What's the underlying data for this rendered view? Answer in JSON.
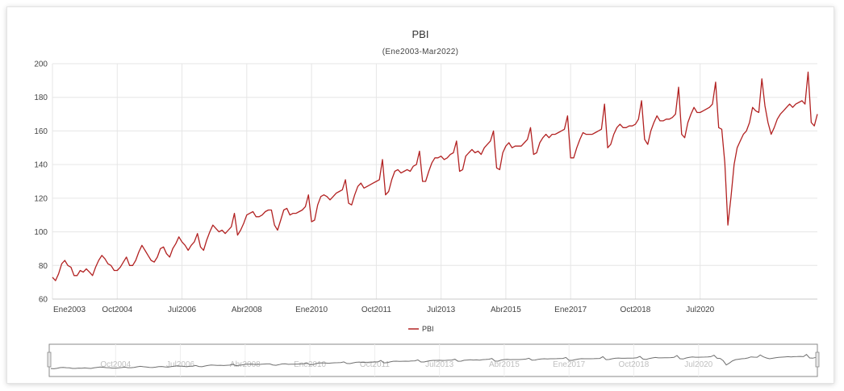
{
  "chart_data": {
    "type": "line",
    "title": "PBI",
    "subtitle": "(Ene2003-Mar2022)",
    "xlabel": "",
    "ylabel": "",
    "ylim": [
      60,
      200
    ],
    "yticks": [
      60,
      80,
      100,
      120,
      140,
      160,
      180,
      200
    ],
    "x_tick_labels": [
      "Ene2003",
      "Oct2004",
      "Jul2006",
      "Abr2008",
      "Ene2010",
      "Oct2011",
      "Jul2013",
      "Abr2015",
      "Ene2017",
      "Oct2018",
      "Jul2020"
    ],
    "navigator_labels": [
      "Oct2004",
      "Jul2006",
      "Abr2008",
      "Ene2010",
      "Oct2011",
      "Jul2013",
      "Abr2015",
      "Ene2017",
      "Oct2018",
      "Jul2020"
    ],
    "x_start": "2003-01",
    "x_end": "2022-03",
    "grid": true,
    "legend": "bottom-center",
    "series": [
      {
        "name": "PBI",
        "color": "#b22222",
        "values": [
          [
            73,
            71,
            75,
            81,
            83,
            80,
            79,
            74,
            74,
            77,
            76,
            78,
            76,
            74,
            79,
            83,
            86,
            84,
            81,
            80,
            77,
            77,
            79,
            82
          ],
          [
            85,
            80,
            80,
            83,
            88,
            92,
            89,
            86,
            83,
            82,
            85,
            90,
            91,
            87,
            85,
            90,
            93,
            97,
            94,
            92,
            89,
            92,
            94,
            99
          ],
          [
            91,
            89,
            95,
            100,
            104,
            102,
            100,
            101,
            99,
            101,
            103,
            111,
            98,
            101,
            105,
            110,
            111,
            112,
            109,
            109,
            110,
            112,
            113,
            113
          ],
          [
            104,
            101,
            107,
            113,
            114,
            110,
            111,
            111,
            112,
            113,
            115,
            122,
            106,
            107,
            116,
            121,
            122,
            121,
            119,
            121,
            123,
            124,
            125,
            131
          ],
          [
            117,
            116,
            122,
            127,
            129,
            126,
            127,
            128,
            129,
            130,
            131,
            143,
            122,
            124,
            131,
            136,
            137,
            135,
            136,
            137,
            136,
            139,
            140,
            148
          ],
          [
            130,
            130,
            136,
            141,
            144,
            144,
            145,
            143,
            144,
            146,
            147,
            154,
            136,
            137,
            145,
            147,
            149,
            147,
            148,
            146,
            150,
            152,
            154,
            160
          ],
          [
            138,
            137,
            147,
            151,
            153,
            150,
            151,
            151,
            151,
            153,
            155,
            162,
            146,
            147,
            153,
            156,
            158,
            156,
            158,
            158,
            159,
            160,
            161,
            169
          ],
          [
            144,
            144,
            150,
            155,
            159,
            158,
            158,
            158,
            159,
            160,
            161,
            176,
            150,
            152,
            158,
            162,
            164,
            162,
            162,
            163,
            163,
            164,
            167,
            178
          ],
          [
            155,
            152,
            160,
            165,
            169,
            166,
            166,
            167,
            167,
            168,
            170,
            186,
            158,
            156,
            165,
            170,
            174,
            171,
            171,
            172,
            173,
            174,
            176,
            189
          ],
          [
            162,
            161,
            141,
            104,
            121,
            140,
            150,
            154,
            158,
            160,
            165,
            174,
            172,
            171,
            191,
            175,
            165,
            158,
            162,
            167,
            170,
            172,
            174,
            176
          ],
          [
            174,
            176,
            177,
            178,
            176,
            195,
            165,
            163,
            170
          ]
        ]
      }
    ]
  }
}
